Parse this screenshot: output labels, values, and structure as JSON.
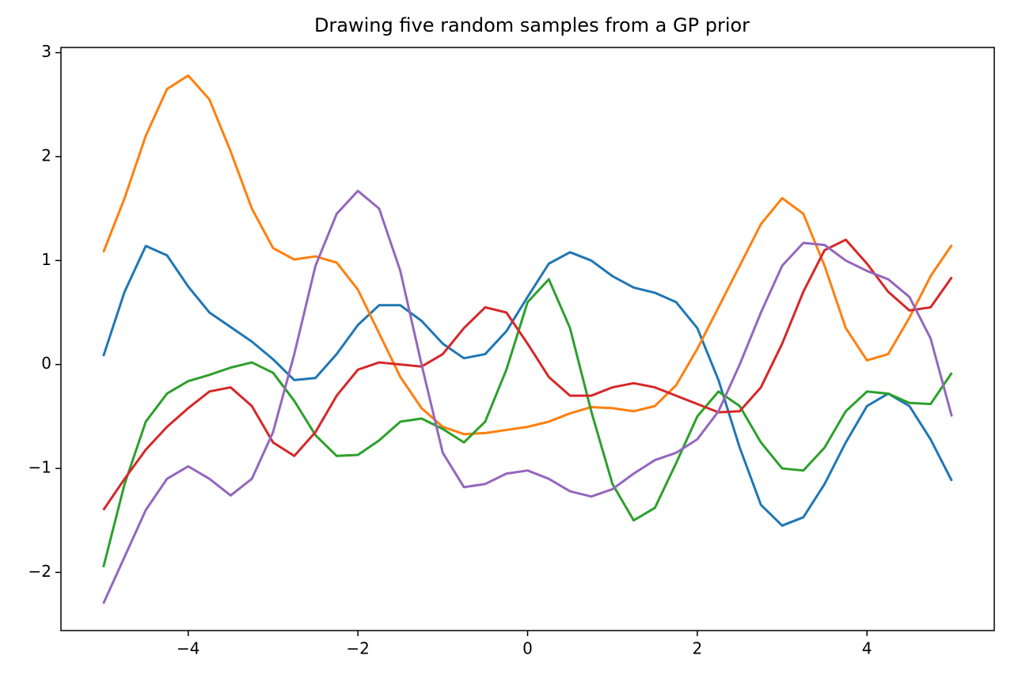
{
  "chart_data": {
    "type": "line",
    "title": "Drawing five random samples from a GP prior",
    "x": [
      -5,
      -4.75,
      -4.5,
      -4.25,
      -4,
      -3.75,
      -3.5,
      -3.25,
      -3,
      -2.75,
      -2.5,
      -2.25,
      -2,
      -1.75,
      -1.5,
      -1.25,
      -1,
      -0.75,
      -0.5,
      -0.25,
      0,
      0.25,
      0.5,
      0.75,
      1,
      1.25,
      1.5,
      1.75,
      2,
      2.25,
      2.5,
      2.75,
      3,
      3.25,
      3.5,
      3.75,
      4,
      4.25,
      4.5,
      4.75,
      5
    ],
    "series": [
      {
        "color": "#1f77b4",
        "values": [
          0.08,
          0.7,
          1.14,
          1.05,
          0.75,
          0.5,
          0.36,
          0.22,
          0.05,
          -0.15,
          -0.13,
          0.1,
          0.38,
          0.57,
          0.57,
          0.42,
          0.2,
          0.06,
          0.1,
          0.32,
          0.65,
          0.97,
          1.08,
          1.0,
          0.85,
          0.74,
          0.69,
          0.6,
          0.35,
          -0.15,
          -0.8,
          -1.35,
          -1.55,
          -1.47,
          -1.15,
          -0.75,
          -0.4,
          -0.28,
          -0.4,
          -0.72,
          -1.12
        ]
      },
      {
        "color": "#ff7f0e",
        "values": [
          1.08,
          1.6,
          2.2,
          2.65,
          2.78,
          2.55,
          2.05,
          1.5,
          1.12,
          1.01,
          1.04,
          0.98,
          0.72,
          0.3,
          -0.12,
          -0.42,
          -0.6,
          -0.67,
          -0.66,
          -0.63,
          -0.6,
          -0.55,
          -0.47,
          -0.41,
          -0.42,
          -0.45,
          -0.4,
          -0.2,
          0.15,
          0.55,
          0.95,
          1.35,
          1.6,
          1.45,
          0.95,
          0.35,
          0.04,
          0.1,
          0.45,
          0.85,
          1.15
        ]
      },
      {
        "color": "#2ca02c",
        "values": [
          -1.95,
          -1.15,
          -0.55,
          -0.28,
          -0.16,
          -0.1,
          -0.03,
          0.02,
          -0.08,
          -0.35,
          -0.68,
          -0.88,
          -0.87,
          -0.73,
          -0.55,
          -0.52,
          -0.62,
          -0.75,
          -0.55,
          -0.05,
          0.6,
          0.82,
          0.35,
          -0.45,
          -1.15,
          -1.5,
          -1.38,
          -0.95,
          -0.5,
          -0.26,
          -0.4,
          -0.75,
          -1.0,
          -1.02,
          -0.8,
          -0.45,
          -0.26,
          -0.28,
          -0.37,
          -0.38,
          -0.08
        ]
      },
      {
        "color": "#d62728",
        "values": [
          -1.4,
          -1.1,
          -0.82,
          -0.6,
          -0.42,
          -0.26,
          -0.22,
          -0.4,
          -0.75,
          -0.88,
          -0.65,
          -0.3,
          -0.05,
          0.02,
          0.0,
          -0.02,
          0.1,
          0.35,
          0.55,
          0.5,
          0.2,
          -0.12,
          -0.3,
          -0.3,
          -0.22,
          -0.18,
          -0.22,
          -0.3,
          -0.38,
          -0.46,
          -0.45,
          -0.22,
          0.2,
          0.7,
          1.1,
          1.2,
          0.97,
          0.7,
          0.52,
          0.55,
          0.84
        ]
      },
      {
        "color": "#9467bd",
        "values": [
          -2.3,
          -1.85,
          -1.4,
          -1.1,
          -0.98,
          -1.1,
          -1.26,
          -1.1,
          -0.65,
          0.1,
          0.95,
          1.45,
          1.67,
          1.5,
          0.9,
          0.0,
          -0.85,
          -1.18,
          -1.15,
          -1.05,
          -1.02,
          -1.1,
          -1.22,
          -1.27,
          -1.2,
          -1.05,
          -0.92,
          -0.85,
          -0.72,
          -0.45,
          0.0,
          0.5,
          0.95,
          1.17,
          1.15,
          1.0,
          0.9,
          0.82,
          0.65,
          0.25,
          -0.5
        ]
      }
    ],
    "xlim": [
      -5.5,
      5.5
    ],
    "xticks": [
      {
        "value": -4,
        "label": "−4"
      },
      {
        "value": -2,
        "label": "−2"
      },
      0,
      2,
      4
    ],
    "ylim": [
      -2.56,
      3.05
    ],
    "yticks": [
      {
        "value": -2,
        "label": "−2"
      },
      {
        "value": -1,
        "label": "−1"
      },
      0,
      1,
      2,
      3
    ],
    "grid": false
  }
}
